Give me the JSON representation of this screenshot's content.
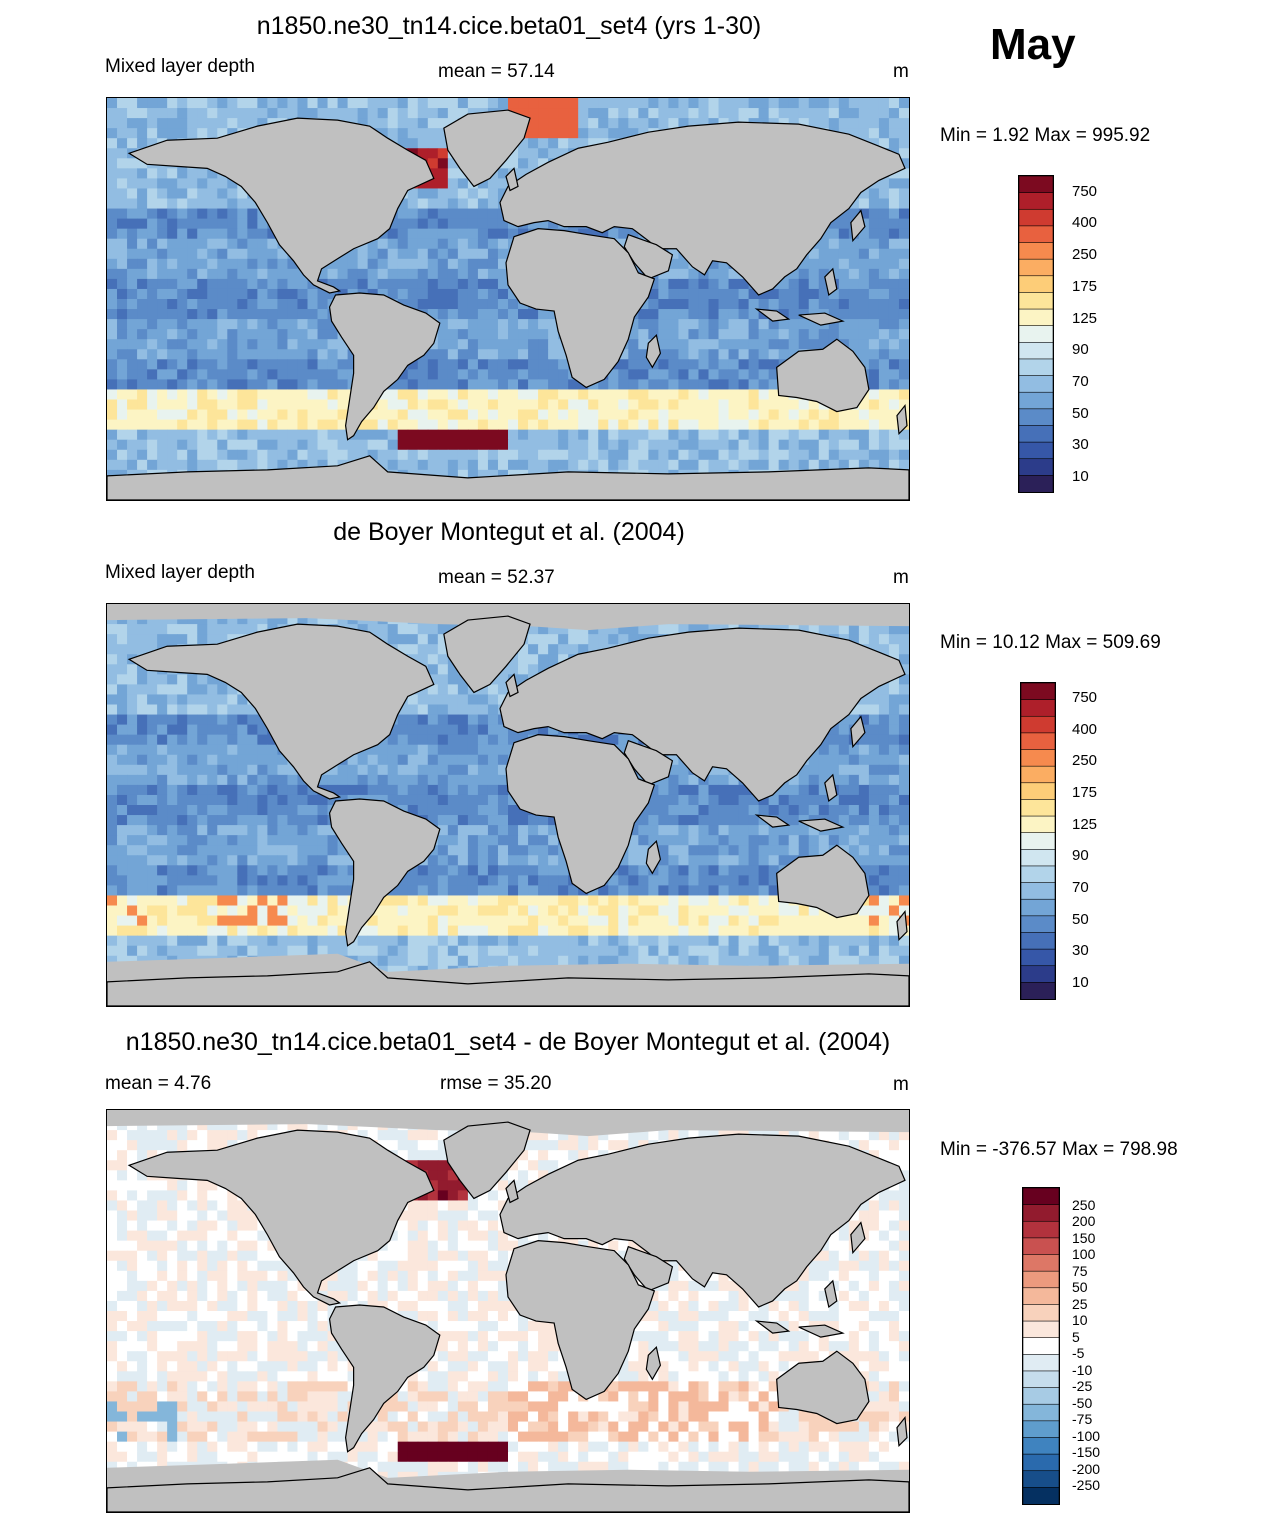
{
  "month": "May",
  "colors": {
    "land": "#c0c0c0",
    "mld_scale": [
      "#2b2058",
      "#2c3c8a",
      "#3657a8",
      "#4670b8",
      "#5b8bc8",
      "#73a5d6",
      "#92bde2",
      "#b2d4ea",
      "#d0e6f0",
      "#e8f3ef",
      "#fcf4c4",
      "#fde59a",
      "#fdcd78",
      "#fbad62",
      "#f68a4e",
      "#e8613f",
      "#cf3b30",
      "#ae1f2a",
      "#7c0a20"
    ],
    "diff_scale": [
      "#053061",
      "#174e8a",
      "#2a6aad",
      "#3f83bf",
      "#5f9dcd",
      "#84b6da",
      "#a7cbe4",
      "#c6ddec",
      "#e0ecf3",
      "#ffffff",
      "#fbe7dc",
      "#f8d2bc",
      "#f4b89b",
      "#ec9a7e",
      "#dd7766",
      "#c95150",
      "#b2323d",
      "#921b2e",
      "#67001f"
    ]
  },
  "panels": [
    {
      "title": "n1850.ne30_tn14.cice.beta01_set4 (yrs 1-30)",
      "left_label": "Mixed layer depth",
      "center_label": "mean =  57.14",
      "unit": "m",
      "minmax": "Min =   1.92 Max = 995.92",
      "kind": "model",
      "colorbar_ticks": [
        "750",
        "400",
        "250",
        "175",
        "125",
        "90",
        "70",
        "50",
        "30",
        "10"
      ]
    },
    {
      "title": "de Boyer Montegut et al. (2004)",
      "left_label": "Mixed layer depth",
      "center_label": "mean =  52.37",
      "unit": "m",
      "minmax": "Min =  10.12 Max = 509.69",
      "kind": "obs",
      "colorbar_ticks": [
        "750",
        "400",
        "250",
        "175",
        "125",
        "90",
        "70",
        "50",
        "30",
        "10"
      ]
    },
    {
      "title": "n1850.ne30_tn14.cice.beta01_set4 - de Boyer Montegut et al. (2004)",
      "left_label": "mean =   4.76",
      "center_label": "rmse =  35.20",
      "unit": "m",
      "minmax": "Min = -376.57 Max = 798.98",
      "kind": "diff",
      "colorbar_ticks": [
        "250",
        "200",
        "150",
        "100",
        "75",
        "50",
        "25",
        "10",
        "5",
        "-5",
        "-10",
        "-25",
        "-50",
        "-75",
        "-100",
        "-150",
        "-200",
        "-250"
      ]
    }
  ]
}
